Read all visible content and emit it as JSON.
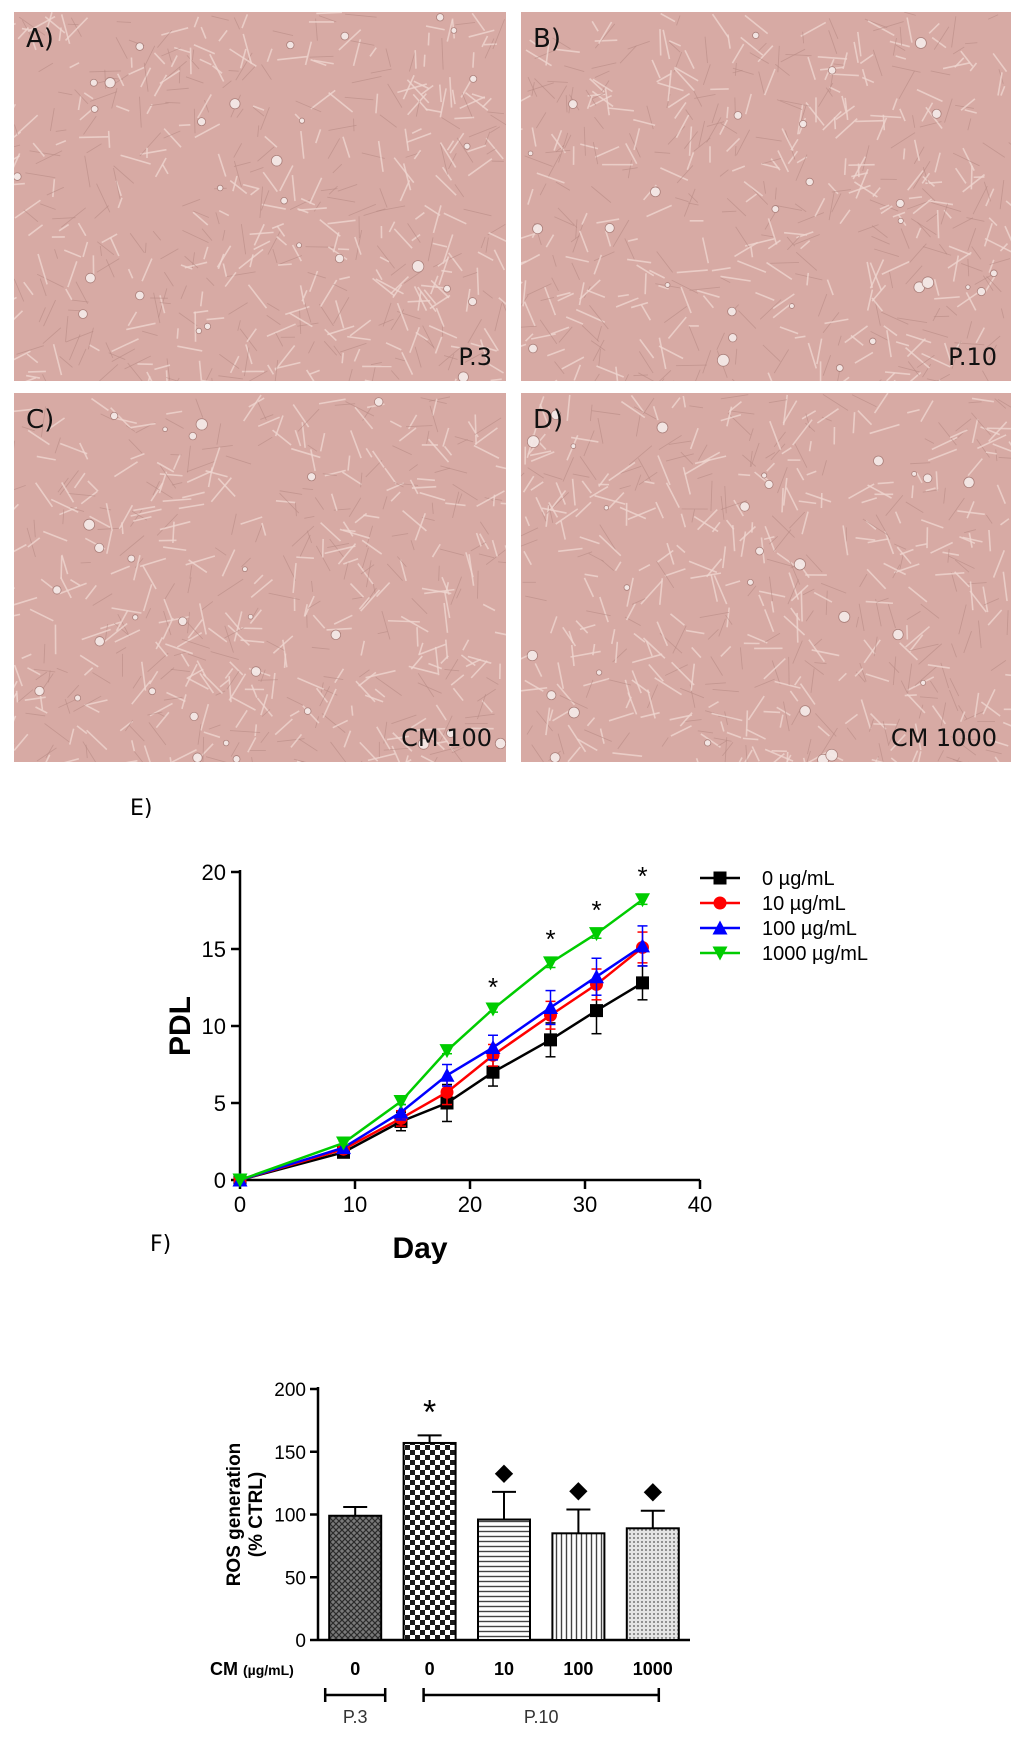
{
  "panels": [
    {
      "label": "A)",
      "corner": "P.3"
    },
    {
      "label": "B)",
      "corner": "P.10"
    },
    {
      "label": "C)",
      "corner": "CM 100"
    },
    {
      "label": "D)",
      "corner": "CM 1000"
    }
  ],
  "panel_e_label": "E)",
  "panel_f_label": "F)",
  "colors": {
    "panel_bg": "#d7aaa4",
    "cell": "#efd6d0",
    "cell_dark": "#b58882"
  },
  "chart_data": [
    {
      "type": "line",
      "title": "",
      "xlabel": "Day",
      "ylabel": "PDL",
      "xlim": [
        0,
        40
      ],
      "ylim": [
        0,
        20
      ],
      "xticks": [
        0,
        10,
        20,
        30,
        40
      ],
      "yticks": [
        0,
        5,
        10,
        15,
        20
      ],
      "x": [
        0,
        9,
        14,
        18,
        22,
        27,
        31,
        35
      ],
      "legend_position": "top-right",
      "series": [
        {
          "name": "0 µg/mL",
          "color": "#000000",
          "marker": "square",
          "values": [
            0,
            1.8,
            3.8,
            5.0,
            7.0,
            9.1,
            11.0,
            12.8
          ],
          "errors": [
            0,
            0.2,
            0.6,
            1.2,
            0.9,
            1.1,
            1.5,
            1.1
          ]
        },
        {
          "name": "10 µg/mL",
          "color": "#ff0000",
          "marker": "circle",
          "values": [
            0,
            2.0,
            4.0,
            5.7,
            8.1,
            10.7,
            12.7,
            15.1
          ],
          "errors": [
            0,
            0.2,
            0.5,
            0.8,
            0.7,
            0.9,
            1.0,
            1.0
          ]
        },
        {
          "name": "100 µg/mL",
          "color": "#0000ff",
          "marker": "triangle-up",
          "values": [
            0,
            2.1,
            4.4,
            6.8,
            8.6,
            11.2,
            13.2,
            15.2
          ],
          "errors": [
            0,
            0.2,
            0.5,
            0.7,
            0.8,
            1.1,
            1.2,
            1.3
          ]
        },
        {
          "name": "1000 µg/mL",
          "color": "#00cc00",
          "marker": "triangle-down",
          "values": [
            0,
            2.4,
            5.1,
            8.4,
            11.1,
            14.1,
            16.0,
            18.2
          ],
          "errors": [
            0,
            0.1,
            0.2,
            0.2,
            0.2,
            0.3,
            0.3,
            0.3
          ]
        }
      ],
      "annotations": [
        {
          "x": 22,
          "text": "*"
        },
        {
          "x": 27,
          "text": "*"
        },
        {
          "x": 31,
          "text": "*"
        },
        {
          "x": 35,
          "text": "*"
        }
      ]
    },
    {
      "type": "bar",
      "title": "",
      "ylabel_line1": "ROS generation",
      "ylabel_line2": "(% CTRL)",
      "x_axis_title": "CM",
      "x_axis_unit": "(µg/mL)",
      "ylim": [
        0,
        200
      ],
      "yticks": [
        0,
        50,
        100,
        150,
        200
      ],
      "categories": [
        "0",
        "0",
        "10",
        "100",
        "1000"
      ],
      "values": [
        99,
        157,
        96,
        85,
        89
      ],
      "errors": [
        7,
        6,
        22,
        19,
        14
      ],
      "patterns": [
        "grid",
        "checker",
        "horizontal",
        "vertical",
        "dots"
      ],
      "annotations": [
        "",
        "*",
        "◆",
        "◆",
        "◆"
      ],
      "groups": [
        {
          "label": "P.3",
          "from": 0,
          "to": 0
        },
        {
          "label": "P.10",
          "from": 1,
          "to": 4
        }
      ]
    }
  ]
}
